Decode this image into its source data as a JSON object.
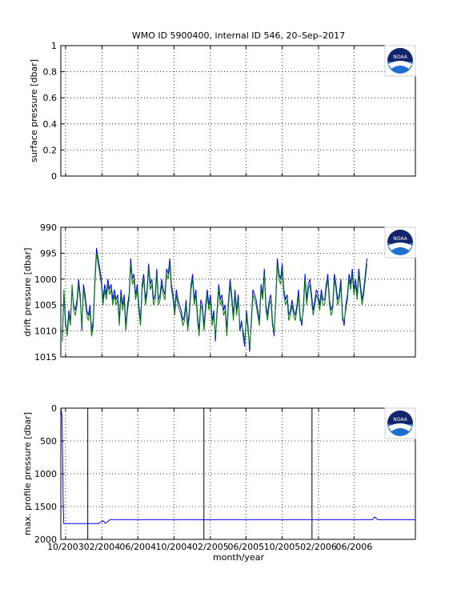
{
  "title": "WMO ID 5900400, internal ID 546, 20–Sep–2017",
  "colors": {
    "blue": "#0000ff",
    "green": "#008000",
    "black": "#000000"
  },
  "logo": {
    "text": "NOAA",
    "icon": "noaa-logo-icon"
  },
  "x_axis": {
    "label": "month/year",
    "ticks": [
      "10/2003",
      "02/2004",
      "06/2004",
      "10/2004",
      "02/2005",
      "06/2005",
      "10/2005",
      "02/2006",
      "06/2006"
    ],
    "range": [
      "2003-09-15",
      "2006-12-25"
    ]
  },
  "chart_data": [
    {
      "type": "line",
      "name": "surface-pressure",
      "ylabel": "surface pressure [dbar]",
      "ylim": [
        0,
        1
      ],
      "yticks": [
        "0",
        "0.2",
        "0.4",
        "0.6",
        "0.8",
        "1"
      ],
      "grid": true,
      "series": []
    },
    {
      "type": "line",
      "name": "drift-pressure",
      "ylabel": "drift pressure [dbar]",
      "ylim": [
        990,
        1015
      ],
      "y_reversed": true,
      "yticks": [
        "990",
        "995",
        "1000",
        "1005",
        "1010",
        "1015"
      ],
      "grid": true,
      "series": [
        {
          "color": "#0000ff",
          "x_start": "2003-09-20",
          "x_step_days": 5.5,
          "values": [
            1011,
            1003,
            1009,
            1010,
            1006,
            1008,
            1002,
            1005,
            1006,
            1004,
            1000,
            1003,
            1010,
            1001,
            1003,
            1006,
            1007,
            1005,
            1010,
            1008,
            1000,
            994,
            996,
            998,
            1000,
            1004,
            1001,
            1003,
            1000,
            1002,
            1001,
            1004,
            1002,
            1004,
            1003,
            1008,
            1002,
            1005,
            1003,
            1009,
            1005,
            1003,
            996,
            1000,
            999,
            1003,
            1001,
            1005,
            1008,
            1001,
            999,
            1004,
            1002,
            997,
            1001,
            1000,
            1004,
            1003,
            998,
            1004,
            1003,
            1000,
            1002,
            1003,
            998,
            999,
            996,
            1001,
            1003,
            1006,
            1002,
            1004,
            1005,
            1006,
            1008,
            1007,
            1004,
            1009,
            1006,
            1001,
            999,
            1004,
            1002,
            1007,
            1010,
            1004,
            1005,
            1009,
            1005,
            1002,
            1005,
            1003,
            1008,
            1006,
            1012,
            1006,
            1001,
            1004,
            1003,
            1006,
            1005,
            1010,
            1004,
            1000,
            1003,
            1007,
            1002,
            1006,
            1003,
            1010,
            1008,
            1011,
            1013,
            1006,
            1009,
            1014,
            1008,
            1002,
            1003,
            1004,
            1006,
            1008,
            1001,
            1003,
            998,
            1005,
            1007,
            1004,
            1003,
            1008,
            1011,
            1004,
            996,
            999,
            1000,
            997,
            1002,
            1004,
            1003,
            1007,
            1006,
            1004,
            1006,
            1007,
            1005,
            1002,
            1007,
            1009,
            1005,
            999,
            1004,
            1001,
            1000,
            1003,
            1006,
            1004,
            1002,
            1003,
            1005,
            1002,
            1004,
            1004,
            1001,
            999,
            1004,
            1006,
            1005,
            999,
            1001,
            1004,
            1003,
            1000,
            1007,
            1009,
            1005,
            1003,
            999,
            1001,
            998,
            1002,
            1000,
            1003,
            998,
            1001,
            1004,
            1002,
            999,
            996
          ]
        },
        {
          "color": "#008000",
          "x_start": "2003-09-20",
          "x_step_days": 5.5,
          "values": [
            1012,
            1002,
            1008,
            1011,
            1007,
            1009,
            1001,
            1006,
            1007,
            1005,
            1001,
            1004,
            1009,
            1002,
            1004,
            1007,
            1008,
            1006,
            1011,
            1009,
            1001,
            995,
            997,
            999,
            1001,
            1005,
            1002,
            1004,
            1001,
            1003,
            1002,
            1005,
            1003,
            1005,
            1004,
            1009,
            1003,
            1006,
            1004,
            1010,
            1006,
            1004,
            997,
            1001,
            1000,
            1004,
            1002,
            1006,
            1009,
            1002,
            1000,
            1005,
            1003,
            998,
            1002,
            1001,
            1005,
            1004,
            999,
            1005,
            1004,
            1001,
            1003,
            1004,
            999,
            1000,
            997,
            1002,
            1004,
            1007,
            1003,
            1005,
            1006,
            1007,
            1009,
            1008,
            1005,
            1010,
            1007,
            1002,
            1000,
            1005,
            1003,
            1008,
            1011,
            1005,
            1006,
            1010,
            1006,
            1003,
            1006,
            1004,
            1009,
            1007,
            1011,
            1007,
            1002,
            1005,
            1004,
            1007,
            1006,
            1011,
            1005,
            1001,
            1004,
            1008,
            1003,
            1007,
            1004,
            1009,
            1009,
            1010,
            1012,
            1007,
            1010,
            1013,
            1009,
            1003,
            1004,
            1005,
            1007,
            1009,
            1002,
            1004,
            999,
            1006,
            1008,
            1005,
            1004,
            1009,
            1010,
            1005,
            997,
            1000,
            1001,
            998,
            1003,
            1005,
            1004,
            1008,
            1007,
            1005,
            1007,
            1008,
            1006,
            1003,
            1008,
            1008,
            1006,
            1000,
            1005,
            1002,
            1001,
            1004,
            1007,
            1005,
            1003,
            1004,
            1006,
            1003,
            1005,
            1005,
            1002,
            1000,
            1005,
            1007,
            1006,
            1000,
            1002,
            1005,
            1004,
            1001,
            1008,
            1008,
            1006,
            1004,
            1000,
            1002,
            999,
            1003,
            1001,
            1004,
            999,
            1002,
            1005,
            1003,
            1000,
            997
          ]
        }
      ]
    },
    {
      "type": "line",
      "name": "max-profile-pressure",
      "ylabel": "max. profile pressure [dbar]",
      "ylim": [
        0,
        2000
      ],
      "y_reversed": true,
      "yticks": [
        "0",
        "500",
        "1000",
        "1500",
        "2000"
      ],
      "grid": true,
      "vlines": [
        "2003-12-15",
        "2005-01-10",
        "2006-01-10"
      ],
      "series": [
        {
          "color": "#0000ff",
          "points": [
            [
              "2003-09-15",
              0
            ],
            [
              "2003-09-19",
              120
            ],
            [
              "2003-09-21",
              700
            ],
            [
              "2003-09-23",
              1500
            ],
            [
              "2003-09-25",
              1760
            ],
            [
              "2004-01-20",
              1760
            ],
            [
              "2004-01-30",
              1730
            ],
            [
              "2004-02-06",
              1720
            ],
            [
              "2004-02-12",
              1755
            ],
            [
              "2004-02-20",
              1730
            ],
            [
              "2004-02-28",
              1700
            ],
            [
              "2006-08-01",
              1700
            ],
            [
              "2006-08-10",
              1660
            ],
            [
              "2006-08-20",
              1700
            ],
            [
              "2006-12-25",
              1700
            ]
          ]
        }
      ]
    }
  ]
}
